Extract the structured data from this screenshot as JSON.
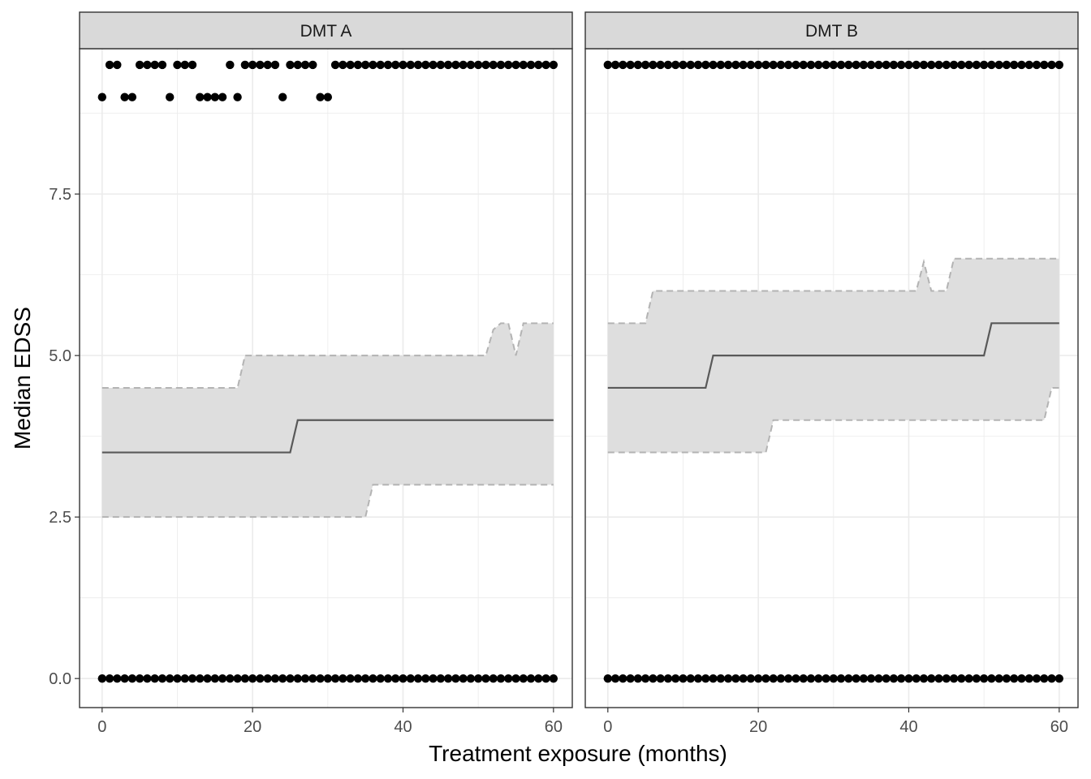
{
  "chart_data": {
    "type": "line",
    "xlabel": "Treatment exposure (months)",
    "ylabel": "Median EDSS",
    "xlim": [
      -3,
      62.5
    ],
    "ylim": [
      -0.45,
      9.75
    ],
    "x_ticks": [
      0,
      20,
      40,
      60
    ],
    "x_tick_labels": [
      "0",
      "20",
      "40",
      "60"
    ],
    "y_ticks": [
      0,
      2.5,
      5,
      7.5
    ],
    "y_tick_labels": [
      "0.0",
      "2.5",
      "5.0",
      "7.5"
    ],
    "grid": true,
    "legend": "none",
    "colors": {
      "median_line": "#595959",
      "ribbon_fill": "#dedede",
      "ribbon_border": "#b3b3b3",
      "points": "#000000",
      "strip_fill": "#d9d9d9",
      "grid": "#ebebeb"
    },
    "panels": [
      {
        "strip": "DMT A",
        "median": [
          [
            0,
            3.5
          ],
          [
            25,
            3.5
          ],
          [
            26,
            4
          ],
          [
            60,
            4
          ]
        ],
        "upper": [
          [
            0,
            4.5
          ],
          [
            18,
            4.5
          ],
          [
            19,
            5
          ],
          [
            51,
            5
          ],
          [
            52,
            5.4
          ],
          [
            53,
            5.5
          ],
          [
            54,
            5.5
          ],
          [
            55,
            5
          ],
          [
            56,
            5.5
          ],
          [
            60,
            5.5
          ]
        ],
        "lower": [
          [
            0,
            2.5
          ],
          [
            35,
            2.5
          ],
          [
            36,
            3
          ],
          [
            60,
            3
          ]
        ],
        "points_top": [
          1,
          2,
          5,
          6,
          7,
          8,
          10,
          11,
          12,
          17,
          19,
          20,
          21,
          22,
          23,
          25,
          26,
          27,
          28,
          31,
          32,
          33,
          34,
          35,
          36,
          37,
          38,
          39,
          40,
          41,
          42,
          43,
          44,
          45,
          46,
          47,
          48,
          49,
          50,
          51,
          52,
          53,
          54,
          55,
          56,
          57,
          58,
          59,
          60
        ],
        "points_mid": [
          0,
          3,
          4,
          9,
          13,
          14,
          15,
          16,
          18,
          24,
          29,
          30
        ],
        "points_bottom_range": [
          0,
          60
        ],
        "y_top": 9.5,
        "y_mid": 9,
        "y_bottom": 0
      },
      {
        "strip": "DMT B",
        "median": [
          [
            0,
            4.5
          ],
          [
            13,
            4.5
          ],
          [
            14,
            5
          ],
          [
            50,
            5
          ],
          [
            51,
            5.5
          ],
          [
            60,
            5.5
          ]
        ],
        "upper": [
          [
            0,
            5.5
          ],
          [
            5,
            5.5
          ],
          [
            6,
            6
          ],
          [
            41,
            6
          ],
          [
            42,
            6.45
          ],
          [
            43,
            6
          ],
          [
            45,
            6
          ],
          [
            46,
            6.5
          ],
          [
            60,
            6.5
          ]
        ],
        "lower": [
          [
            0,
            3.5
          ],
          [
            21,
            3.5
          ],
          [
            22,
            4
          ],
          [
            58,
            4
          ],
          [
            59,
            4.5
          ],
          [
            60,
            4.5
          ]
        ],
        "points_top_range": [
          0,
          60
        ],
        "points_bottom_range": [
          0,
          60
        ],
        "y_top": 9.5,
        "y_bottom": 0
      }
    ]
  }
}
